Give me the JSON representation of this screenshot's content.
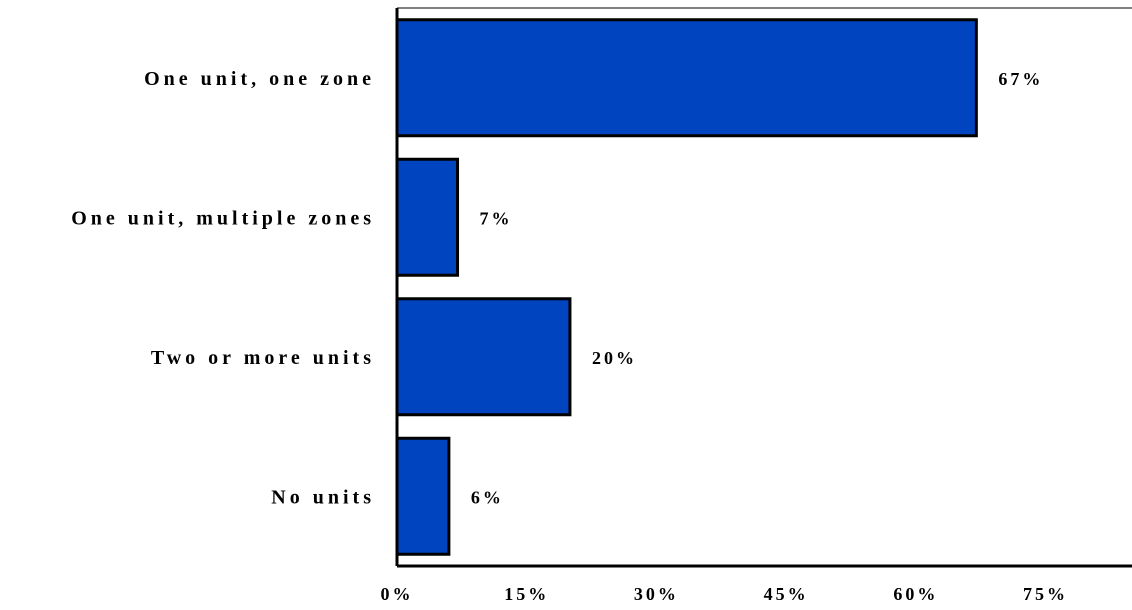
{
  "chart_data": {
    "type": "bar",
    "orientation": "horizontal",
    "categories": [
      "One unit, one zone",
      "One unit, multiple zones",
      "Two or more units",
      "No units"
    ],
    "values": [
      67,
      7,
      20,
      6
    ],
    "value_labels": [
      "67%",
      "7%",
      "20%",
      "6%"
    ],
    "xlim": [
      0,
      85
    ],
    "xticks": [
      0,
      15,
      30,
      45,
      60,
      75
    ],
    "xtick_labels": [
      "0%",
      "15%",
      "30%",
      "45%",
      "60%",
      "75%"
    ],
    "bar_color": "#0044c0",
    "grid": false,
    "title": "",
    "xlabel": "",
    "ylabel": ""
  }
}
